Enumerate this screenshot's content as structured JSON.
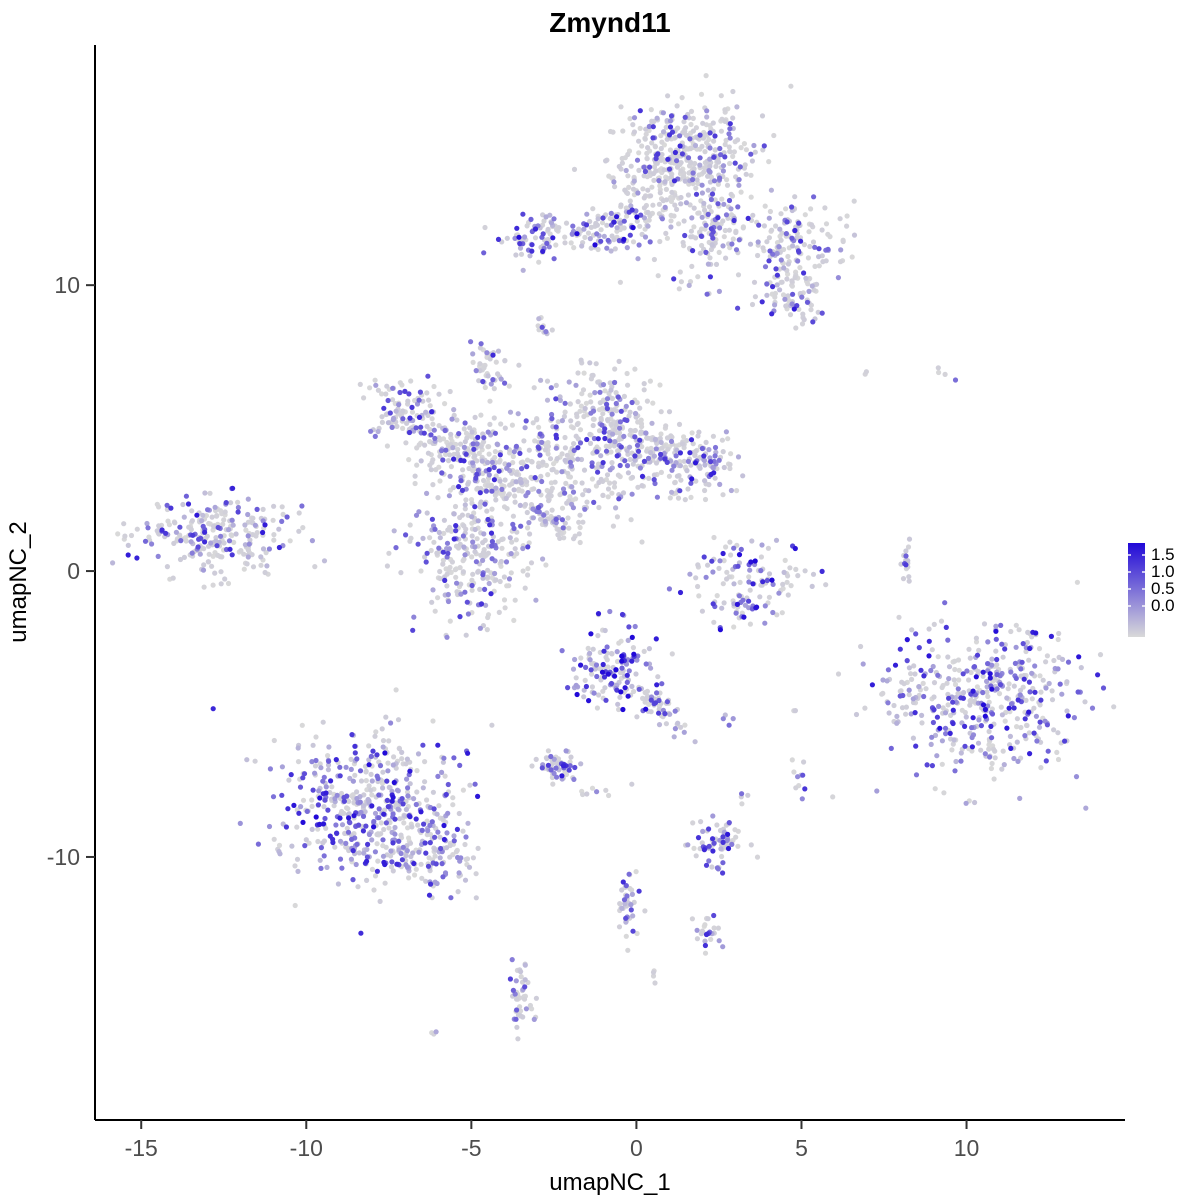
{
  "title": "Zmynd11",
  "chart_data": {
    "type": "scatter",
    "title": "Zmynd11",
    "xlabel": "umapNC_1",
    "ylabel": "umapNC_2",
    "xlim": [
      -16.4,
      14.8
    ],
    "ylim": [
      -19.2,
      18.4
    ],
    "x_ticks": [
      -15,
      -10,
      -5,
      0,
      5,
      10
    ],
    "y_ticks": [
      10,
      0,
      -10
    ],
    "grid": false,
    "legend_position": "right",
    "colorbar": {
      "ticks": [
        "1.5",
        "1.0",
        "0.5",
        "0.0"
      ],
      "low_color": "#D9D9D9",
      "high_color": "#2109D8",
      "value_range": [
        0.0,
        1.5
      ]
    },
    "point_radius": 2.6,
    "cluster_format": [
      "center_x",
      "center_y",
      "sd_x",
      "sd_y",
      "n_points",
      "expressed_fraction",
      "rotation_deg",
      "max_expression"
    ],
    "clusters": [
      [
        1.6,
        14.6,
        1.05,
        0.85,
        360,
        0.35,
        0,
        1.3
      ],
      [
        0.4,
        13.3,
        0.7,
        0.5,
        70,
        0.3,
        0,
        1.1
      ],
      [
        2.3,
        12.2,
        0.5,
        0.7,
        60,
        0.45,
        0,
        1.3
      ],
      [
        1.6,
        10.4,
        0.7,
        0.6,
        25,
        0.4,
        0,
        1.2
      ],
      [
        4.8,
        11.4,
        0.75,
        1.0,
        150,
        0.5,
        0,
        1.4
      ],
      [
        4.6,
        9.6,
        0.5,
        0.5,
        60,
        0.55,
        0,
        1.4
      ],
      [
        -2.0,
        11.8,
        1.1,
        0.4,
        120,
        0.5,
        0,
        1.6
      ],
      [
        -3.3,
        11.4,
        0.3,
        0.3,
        25,
        0.5,
        0,
        1.5
      ],
      [
        0.1,
        12.2,
        0.9,
        0.35,
        50,
        0.35,
        0,
        1.2
      ],
      [
        -2.8,
        8.6,
        0.15,
        0.2,
        10,
        0.5,
        0,
        1.2
      ],
      [
        -4.5,
        7.2,
        0.28,
        0.38,
        40,
        0.55,
        0,
        1.3
      ],
      [
        -6.9,
        5.4,
        0.65,
        0.65,
        110,
        0.45,
        0,
        1.3
      ],
      [
        -5.4,
        4.4,
        0.75,
        0.55,
        120,
        0.4,
        0,
        1.2
      ],
      [
        -4.3,
        3.3,
        0.8,
        0.55,
        130,
        0.45,
        -30,
        1.3
      ],
      [
        -2.4,
        3.9,
        0.9,
        0.75,
        160,
        0.4,
        0,
        1.2
      ],
      [
        -0.9,
        5.4,
        0.65,
        0.8,
        140,
        0.45,
        0,
        1.3
      ],
      [
        0.3,
        4.3,
        0.65,
        0.65,
        120,
        0.4,
        0,
        1.2
      ],
      [
        1.7,
        3.7,
        0.75,
        0.55,
        130,
        0.5,
        0,
        1.4
      ],
      [
        -2.6,
        1.75,
        0.55,
        0.14,
        55,
        0.45,
        -40,
        1.2
      ],
      [
        -5.0,
        0.6,
        0.95,
        1.2,
        280,
        0.45,
        0,
        1.3
      ],
      [
        -12.7,
        1.2,
        1.25,
        0.65,
        260,
        0.45,
        0,
        1.4
      ],
      [
        3.4,
        -0.4,
        0.85,
        0.75,
        130,
        0.5,
        0,
        1.6
      ],
      [
        8.2,
        0.45,
        0.12,
        0.5,
        18,
        0.5,
        0,
        1.2
      ],
      [
        7.0,
        7.0,
        0.1,
        0.1,
        2,
        0.5,
        0,
        1.0
      ],
      [
        9.4,
        6.9,
        0.3,
        0.2,
        4,
        0.5,
        0,
        1.2
      ],
      [
        10.7,
        -4.6,
        1.5,
        1.4,
        430,
        0.55,
        0,
        1.5
      ],
      [
        8.4,
        -4.1,
        0.4,
        0.6,
        40,
        0.5,
        0,
        1.3
      ],
      [
        -0.6,
        -3.4,
        0.6,
        0.8,
        150,
        0.75,
        0,
        1.7
      ],
      [
        0.8,
        -4.9,
        0.55,
        0.2,
        50,
        0.5,
        -45,
        1.3
      ],
      [
        -2.45,
        -6.9,
        0.28,
        0.28,
        60,
        0.6,
        0,
        1.4
      ],
      [
        -0.9,
        -7.7,
        0.5,
        0.3,
        8,
        0.5,
        0,
        1.2
      ],
      [
        -8.1,
        -8.3,
        1.45,
        1.25,
        520,
        0.65,
        0,
        1.5
      ],
      [
        -6.1,
        -10.1,
        0.7,
        0.5,
        90,
        0.55,
        -20,
        1.3
      ],
      [
        2.5,
        -9.6,
        0.45,
        0.45,
        70,
        0.6,
        0,
        1.4
      ],
      [
        4.9,
        -7.2,
        0.15,
        0.3,
        10,
        0.5,
        0,
        1.2
      ],
      [
        3.3,
        -7.9,
        0.12,
        0.12,
        3,
        0.5,
        0,
        1.0
      ],
      [
        2.7,
        -5.3,
        0.2,
        0.15,
        4,
        0.5,
        0,
        1.1
      ],
      [
        4.8,
        -4.9,
        0.1,
        0.1,
        2,
        0.5,
        0,
        1.0
      ],
      [
        -0.3,
        -11.7,
        0.16,
        0.7,
        40,
        0.55,
        0,
        1.3
      ],
      [
        2.2,
        -12.6,
        0.2,
        0.3,
        25,
        0.6,
        0,
        1.3
      ],
      [
        -3.5,
        -14.8,
        0.22,
        0.75,
        45,
        0.45,
        0,
        1.2
      ],
      [
        0.6,
        -14.1,
        0.12,
        0.12,
        4,
        0.85,
        0,
        1.3
      ],
      [
        -6.3,
        -16.1,
        0.15,
        0.1,
        3,
        0.4,
        0,
        1.0
      ],
      [
        -2.5,
        6.4,
        1.0,
        0.7,
        25,
        0.35,
        0,
        1.1
      ],
      [
        -1.3,
        2.6,
        0.8,
        0.6,
        60,
        0.4,
        0,
        1.2
      ],
      [
        2.6,
        11.9,
        0.6,
        0.4,
        40,
        0.45,
        0,
        1.3
      ]
    ]
  }
}
